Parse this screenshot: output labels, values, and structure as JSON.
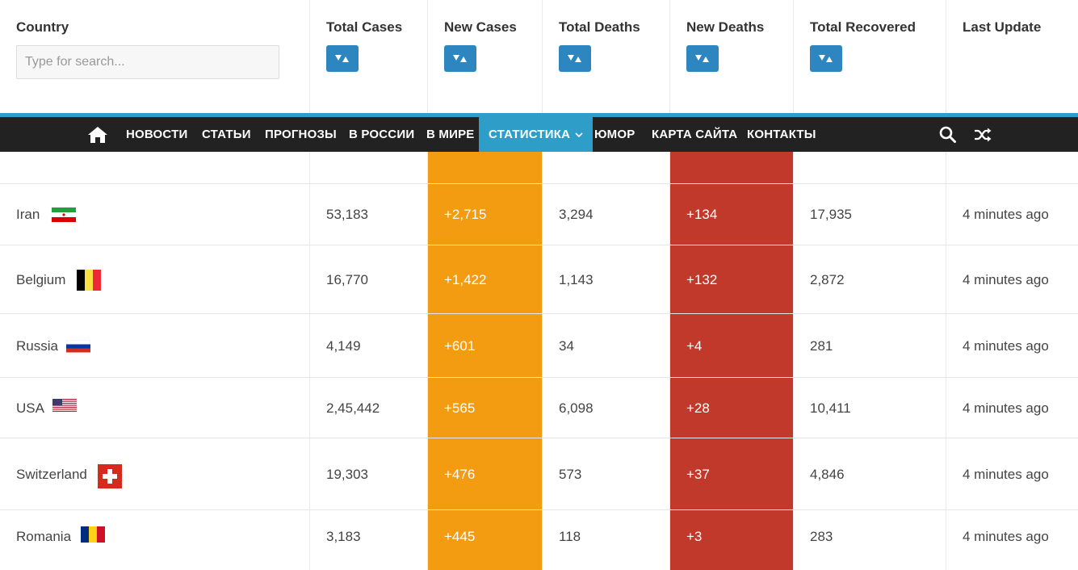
{
  "table": {
    "headers": {
      "country": "Country",
      "total_cases": "Total Cases",
      "new_cases": "New Cases",
      "total_deaths": "Total Deaths",
      "new_deaths": "New Deaths",
      "total_recovered": "Total Recovered",
      "last_update": "Last Update"
    },
    "search_placeholder": "Type for search...",
    "rows": [
      {
        "country": "Iran",
        "total_cases": "53,183",
        "new_cases": "+2,715",
        "total_deaths": "3,294",
        "new_deaths": "+134",
        "total_recovered": "17,935",
        "last_update": "4 minutes ago",
        "flag": "iran-flag-icon"
      },
      {
        "country": "Belgium",
        "total_cases": "16,770",
        "new_cases": "+1,422",
        "total_deaths": "1,143",
        "new_deaths": "+132",
        "total_recovered": "2,872",
        "last_update": "4 minutes ago",
        "flag": "belgium-flag-icon"
      },
      {
        "country": "Russia",
        "total_cases": "4,149",
        "new_cases": "+601",
        "total_deaths": "34",
        "new_deaths": "+4",
        "total_recovered": "281",
        "last_update": "4 minutes ago",
        "flag": "russia-flag-icon"
      },
      {
        "country": "USA",
        "total_cases": "2,45,442",
        "new_cases": "+565",
        "total_deaths": "6,098",
        "new_deaths": "+28",
        "total_recovered": "10,411",
        "last_update": "4 minutes ago",
        "flag": "usa-flag-icon"
      },
      {
        "country": "Switzerland",
        "total_cases": "19,303",
        "new_cases": "+476",
        "total_deaths": "573",
        "new_deaths": "+37",
        "total_recovered": "4,846",
        "last_update": "4 minutes ago",
        "flag": "switzerland-flag-icon"
      },
      {
        "country": "Romania",
        "total_cases": "3,183",
        "new_cases": "+445",
        "total_deaths": "118",
        "new_deaths": "+3",
        "total_recovered": "283",
        "last_update": "4 minutes ago",
        "flag": "romania-flag-icon"
      }
    ]
  },
  "nav": {
    "home_icon": "home-icon",
    "items": [
      "НОВОСТИ",
      "СТАТЬИ",
      "ПРОГНОЗЫ",
      "В РОССИИ",
      "В МИРЕ",
      "СТАТИСТИКА",
      "ЮМОР",
      "КАРТА САЙТА",
      "КОНТАКТЫ"
    ],
    "active_item": "СТАТИСТИКА",
    "search_icon": "search-icon",
    "random_icon": "shuffle-icon"
  },
  "colors": {
    "accent": "#2e9ec8",
    "sort_button": "#2e86c1",
    "new_cases_bg": "#f39c12",
    "new_deaths_bg": "#c0392b",
    "nav_bg": "#222222"
  }
}
